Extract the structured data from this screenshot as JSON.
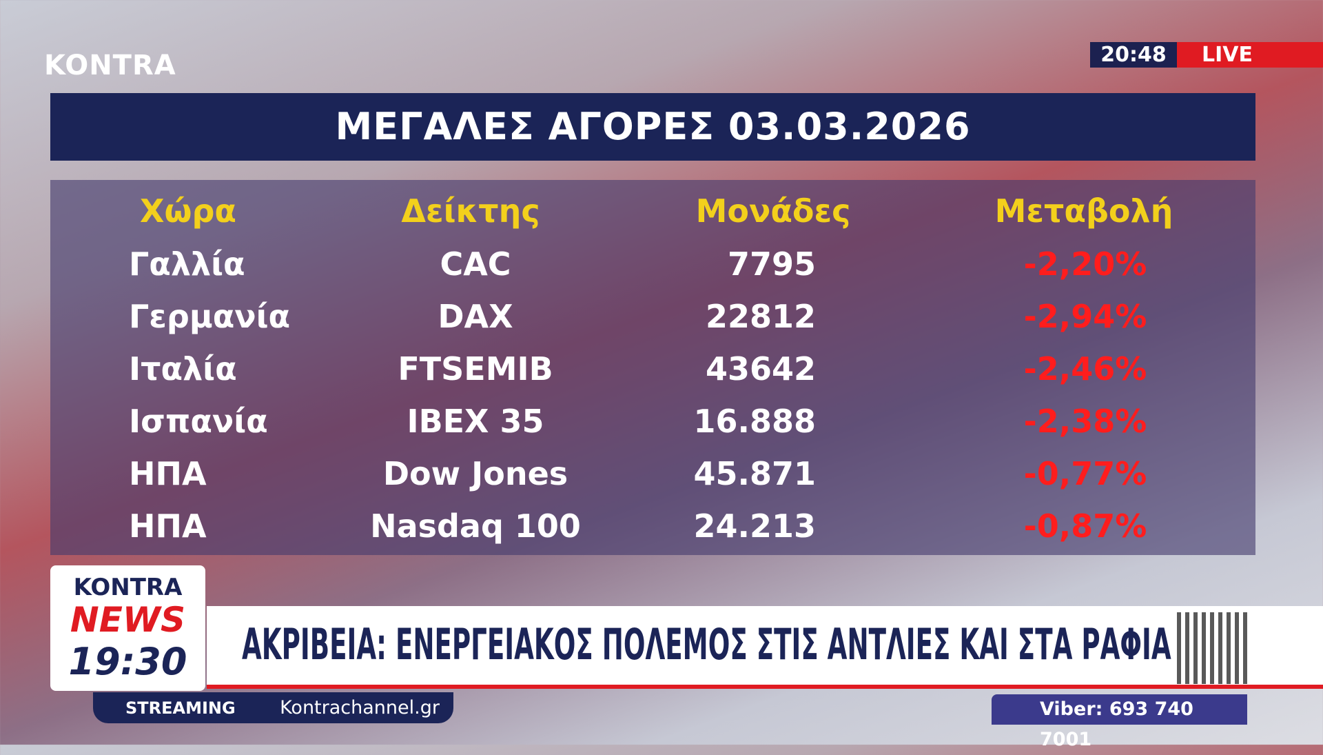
{
  "logo": "KONTRA",
  "clock": "20:48",
  "live": "LIVE",
  "title": "ΜΕΓΑΛΕΣ ΑΓΟΡΕΣ 03.03.2026",
  "table": {
    "header": [
      "Χώρα",
      "Δείκτης",
      "Μονάδες",
      "Μεταβολή"
    ],
    "rows": [
      [
        "Γαλλία",
        "CAC",
        "7795",
        "-2,20%"
      ],
      [
        "Γερμανία",
        "DAX",
        "22812",
        "-2,94%"
      ],
      [
        "Ιταλία",
        "FTSEMIB",
        "43642",
        "-2,46%"
      ],
      [
        "Ισπανία",
        "IBEX 35",
        "16.888",
        "-2,38%"
      ],
      [
        "ΗΠΑ",
        "Dow Jones",
        "45.871",
        "-0,77%"
      ],
      [
        "ΗΠΑ",
        "Nasdaq 100",
        "24.213",
        "-0,87%"
      ]
    ]
  },
  "show": {
    "brand": "KONTRA",
    "name": "NEWS",
    "time": "19:30"
  },
  "headline": "ΑΚΡΙΒΕΙΑ: ΕΝΕΡΓΕΙΑΚΟΣ ΠΟΛΕΜΟΣ ΣΤΙΣ ΑΝΤΛΙΕΣ ΚΑΙ ΣΤΑ ΡΑΦΙΑ",
  "streaming": {
    "label": "STREAMING",
    "site": "Kontrachannel.gr"
  },
  "viber": "Viber: 693 740 7001"
}
